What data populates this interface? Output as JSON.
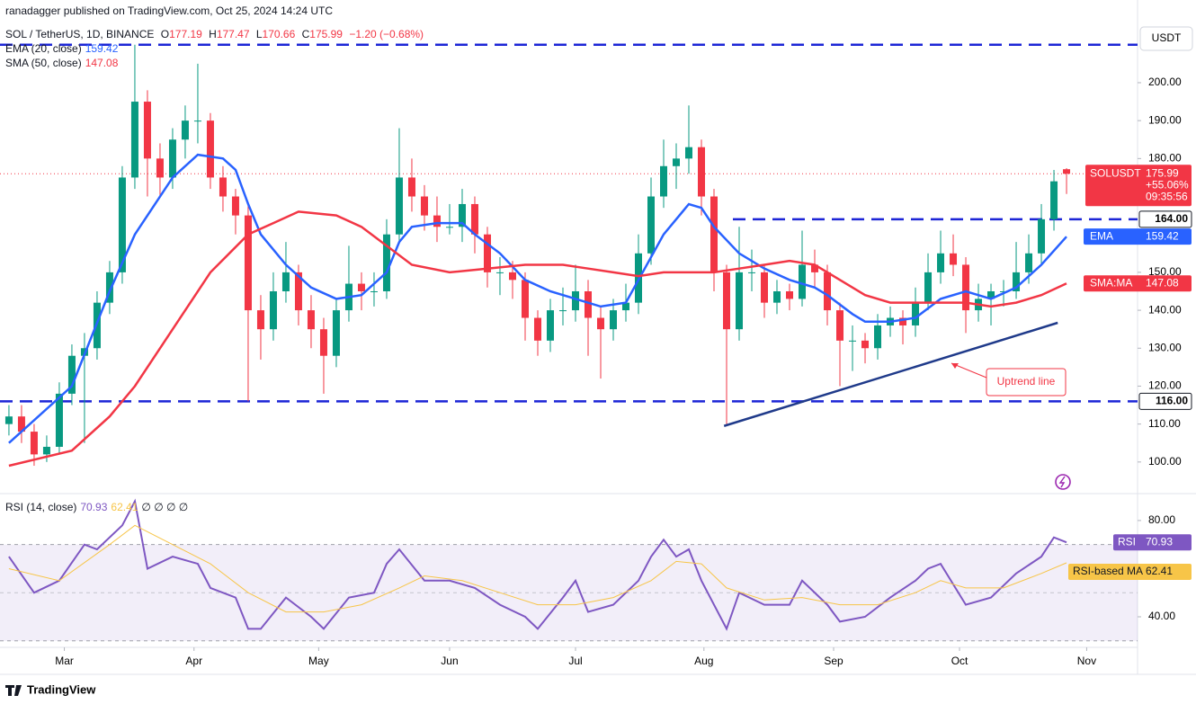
{
  "header": {
    "publisher": "ranadagger published on TradingView.com, Oct 25, 2024 14:24 UTC",
    "symbol": "SOL / TetherUS, 1D, BINANCE",
    "ohlc_letters": [
      "O",
      "H",
      "L",
      "C"
    ],
    "change": "−1.20 (−0.68%)",
    "currency": "USDT",
    "brand": "TradingView"
  },
  "chart_data": [
    {
      "type": "candlestick",
      "colors": {
        "up": "#089981",
        "down": "#f23645"
      },
      "candles": [
        [
          110,
          115,
          107,
          112
        ],
        [
          112,
          115,
          105,
          108
        ],
        [
          108,
          110,
          99,
          102
        ],
        [
          102,
          107,
          100,
          104
        ],
        [
          104,
          121,
          102,
          118
        ],
        [
          118,
          131,
          115,
          128
        ],
        [
          128,
          134,
          105,
          130
        ],
        [
          130,
          145,
          127,
          142
        ],
        [
          142,
          153,
          139,
          150
        ],
        [
          150,
          178,
          147,
          175
        ],
        [
          175,
          210,
          172,
          195
        ],
        [
          195,
          198,
          170,
          180
        ],
        [
          180,
          184,
          170,
          175
        ],
        [
          175,
          188,
          172,
          185
        ],
        [
          185,
          194,
          180,
          190
        ],
        [
          190,
          205,
          184,
          190
        ],
        [
          190,
          192,
          172,
          175
        ],
        [
          175,
          178,
          166,
          170
        ],
        [
          170,
          172,
          160,
          165
        ],
        [
          165,
          168,
          116,
          140
        ],
        [
          140,
          144,
          127,
          135
        ],
        [
          135,
          150,
          132,
          145
        ],
        [
          145,
          158,
          142,
          150
        ],
        [
          150,
          152,
          136,
          140
        ],
        [
          140,
          144,
          130,
          135
        ],
        [
          135,
          138,
          118,
          128
        ],
        [
          128,
          143,
          125,
          140
        ],
        [
          140,
          157,
          137,
          147
        ],
        [
          147,
          150,
          140,
          145
        ],
        [
          145,
          150,
          141,
          145
        ],
        [
          145,
          164,
          143,
          160
        ],
        [
          160,
          188,
          158,
          175
        ],
        [
          175,
          180,
          166,
          170
        ],
        [
          170,
          173,
          161,
          165
        ],
        [
          165,
          170,
          158,
          162
        ],
        [
          162,
          168,
          160,
          162
        ],
        [
          162,
          172,
          158,
          168
        ],
        [
          168,
          170,
          155,
          160
        ],
        [
          160,
          162,
          146,
          150
        ],
        [
          150,
          154,
          144,
          150
        ],
        [
          150,
          153,
          143,
          148
        ],
        [
          148,
          150,
          132,
          138
        ],
        [
          138,
          140,
          128,
          132
        ],
        [
          132,
          143,
          129,
          140
        ],
        [
          140,
          146,
          136,
          140
        ],
        [
          140,
          152,
          137,
          145
        ],
        [
          145,
          148,
          128,
          138
        ],
        [
          138,
          141,
          122,
          135
        ],
        [
          135,
          143,
          132,
          140
        ],
        [
          140,
          147,
          137,
          142
        ],
        [
          142,
          160,
          139,
          155
        ],
        [
          155,
          175,
          152,
          170
        ],
        [
          170,
          185,
          167,
          178
        ],
        [
          178,
          184,
          172,
          180
        ],
        [
          180,
          194,
          176,
          183
        ],
        [
          183,
          185,
          165,
          170
        ],
        [
          170,
          172,
          145,
          150
        ],
        [
          150,
          152,
          110,
          135
        ],
        [
          135,
          162,
          132,
          150
        ],
        [
          150,
          156,
          145,
          150
        ],
        [
          150,
          152,
          138,
          142
        ],
        [
          142,
          148,
          139,
          145
        ],
        [
          145,
          147,
          140,
          143
        ],
        [
          143,
          161,
          141,
          152
        ],
        [
          152,
          156,
          146,
          150
        ],
        [
          150,
          152,
          136,
          140
        ],
        [
          140,
          142,
          120,
          132
        ],
        [
          132,
          136,
          124,
          132
        ],
        [
          132,
          134,
          126,
          130
        ],
        [
          130,
          139,
          127,
          136
        ],
        [
          136,
          141,
          133,
          138
        ],
        [
          138,
          140,
          131,
          136
        ],
        [
          136,
          146,
          133,
          142
        ],
        [
          142,
          155,
          140,
          150
        ],
        [
          150,
          161,
          147,
          155
        ],
        [
          155,
          160,
          149,
          152
        ],
        [
          152,
          154,
          134,
          140
        ],
        [
          140,
          147,
          137,
          143
        ],
        [
          143,
          147,
          136,
          145
        ],
        [
          145,
          148,
          141,
          145
        ],
        [
          145,
          158,
          143,
          150
        ],
        [
          150,
          160,
          147,
          155
        ],
        [
          155,
          168,
          152,
          164
        ],
        [
          164,
          177,
          161,
          174
        ],
        [
          177.19,
          177.47,
          170.66,
          175.99
        ]
      ],
      "xlim": [
        -0.71,
        89.64
      ],
      "xticks": [
        {
          "value": 4.4,
          "label": "Mar"
        },
        {
          "value": 14.7,
          "label": "Apr"
        },
        {
          "value": 24.6,
          "label": "May"
        },
        {
          "value": 35,
          "label": "Jun"
        },
        {
          "value": 45,
          "label": "Jul"
        },
        {
          "value": 55.2,
          "label": "Aug"
        },
        {
          "value": 65.5,
          "label": "Sep"
        },
        {
          "value": 75.5,
          "label": "Oct"
        },
        {
          "value": 85.6,
          "label": "Nov"
        }
      ],
      "ylim": [
        91.9,
        221.8
      ],
      "yticks": [
        {
          "value": 100,
          "label": "100.00"
        },
        {
          "value": 110,
          "label": "110.00"
        },
        {
          "value": 120,
          "label": "120.00"
        },
        {
          "value": 130,
          "label": "130.00"
        },
        {
          "value": 140,
          "label": "140.00"
        },
        {
          "value": 150,
          "label": "150.00"
        },
        {
          "value": 180,
          "label": "180.00"
        },
        {
          "value": 190,
          "label": "190.00"
        },
        {
          "value": 200,
          "label": "200.00"
        }
      ],
      "series": [
        {
          "name": "EMA (20, close)",
          "tag": "EMA",
          "color": "#2962ff",
          "x": [
            0,
            5,
            8,
            10,
            13,
            15,
            17,
            18,
            19,
            20,
            22,
            24,
            26,
            28,
            30,
            31,
            32,
            34,
            36,
            37,
            39,
            41,
            43,
            45,
            47,
            49,
            50,
            52,
            54,
            55,
            56,
            58,
            60,
            62,
            64,
            65,
            67,
            68,
            70,
            72,
            74,
            76,
            78,
            80,
            82,
            84
          ],
          "values": [
            105,
            120,
            145,
            160,
            175,
            181,
            180,
            177,
            168,
            160,
            152,
            146,
            143,
            144,
            150,
            158,
            162,
            163,
            163,
            160,
            155,
            148,
            145,
            143,
            141,
            142,
            148,
            160,
            168,
            167,
            162,
            155,
            151,
            148,
            146,
            144,
            139,
            137,
            137,
            138,
            143,
            145,
            143,
            146,
            152,
            159.42
          ]
        },
        {
          "name": "SMA (50, close)",
          "tag": "SMA:MA",
          "color": "#f23645",
          "x": [
            0,
            5,
            8,
            10,
            13,
            16,
            19,
            21,
            23,
            26,
            28,
            30,
            32,
            35,
            38,
            41,
            44,
            46,
            48,
            50,
            52,
            54,
            56,
            58,
            60,
            62,
            64,
            66,
            68,
            70,
            72,
            74,
            76,
            78,
            80,
            82,
            84
          ],
          "values": [
            99,
            103,
            112,
            120,
            135,
            150,
            160,
            163,
            166,
            165,
            162,
            157,
            152,
            150,
            151,
            152,
            152,
            151,
            150,
            149,
            150,
            150,
            150,
            151,
            152,
            153,
            152,
            148,
            144,
            142,
            142,
            142,
            142,
            141,
            142,
            144,
            147.08
          ]
        }
      ],
      "levels": [
        {
          "value": 210
        },
        {
          "value": 164,
          "label": "164.00",
          "from": 57.5
        },
        {
          "value": 116,
          "label": "116.00"
        }
      ],
      "level_color": "#1c25d6",
      "trendline": {
        "label": "Uptrend line",
        "x": [
          56.8,
          83.3
        ],
        "values": [
          109.5,
          136.7
        ],
        "color": "#1f3a8a"
      },
      "last": {
        "symbol": "SOLUSDT",
        "change": "+55.06%",
        "countdown": "09:35:56"
      }
    },
    {
      "type": "line",
      "title": "RSI (14, close)",
      "extra": "∅ ∅ ∅ ∅",
      "series": [
        {
          "name": "RSI",
          "color": "#7e57c2",
          "x": [
            0,
            2,
            4,
            6,
            7,
            9,
            10,
            11,
            13,
            15,
            16,
            18,
            19,
            20,
            22,
            24,
            25,
            27,
            29,
            30,
            31,
            33,
            35,
            37,
            39,
            41,
            42,
            44,
            45,
            46,
            48,
            50,
            51,
            52,
            53,
            54,
            55,
            57,
            58,
            60,
            62,
            63,
            65,
            66,
            68,
            70,
            72,
            73,
            74,
            76,
            78,
            80,
            82,
            83,
            84
          ],
          "values": [
            65,
            50,
            55,
            70,
            68,
            78,
            88,
            60,
            65,
            62,
            52,
            48,
            35,
            35,
            48,
            40,
            35,
            48,
            50,
            62,
            68,
            55,
            55,
            52,
            45,
            40,
            35,
            48,
            55,
            42,
            45,
            55,
            65,
            72,
            65,
            68,
            55,
            35,
            50,
            45,
            45,
            55,
            45,
            38,
            40,
            48,
            55,
            60,
            62,
            45,
            48,
            58,
            65,
            73,
            70.93
          ]
        },
        {
          "name": "RSI-based MA",
          "color": "#f7c548",
          "x": [
            0,
            4,
            8,
            10,
            13,
            16,
            19,
            22,
            25,
            28,
            31,
            33,
            36,
            39,
            42,
            45,
            48,
            51,
            53,
            55,
            57,
            60,
            63,
            66,
            69,
            72,
            74,
            76,
            79,
            82,
            84
          ],
          "values": [
            60,
            55,
            70,
            78,
            70,
            62,
            50,
            42,
            42,
            45,
            52,
            57,
            55,
            50,
            45,
            45,
            48,
            55,
            63,
            62,
            52,
            47,
            48,
            45,
            45,
            50,
            55,
            52,
            52,
            58,
            62.41
          ]
        }
      ],
      "ylim": [
        27.3,
        90.8
      ],
      "yticks": [
        {
          "value": 40,
          "label": "40.00"
        },
        {
          "value": 80,
          "label": "80.00"
        }
      ],
      "bands": [
        70,
        50,
        30
      ]
    }
  ]
}
